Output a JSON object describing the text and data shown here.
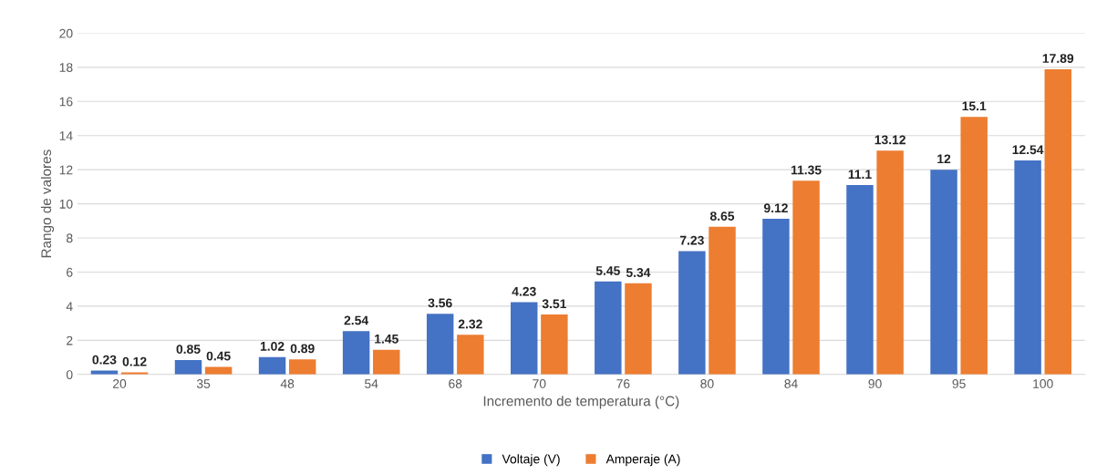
{
  "chart_data": {
    "type": "bar",
    "xlabel": "Incremento de temperatura (°C)",
    "ylabel": "Rango de valores",
    "categories": [
      "20",
      "35",
      "48",
      "54",
      "68",
      "70",
      "76",
      "80",
      "84",
      "90",
      "95",
      "100"
    ],
    "series": [
      {
        "name": "Voltaje (V)",
        "color": "#4472c4",
        "values": [
          0.23,
          0.85,
          1.02,
          2.54,
          3.56,
          4.23,
          5.45,
          7.23,
          9.12,
          11.1,
          12,
          12.54
        ]
      },
      {
        "name": "Amperaje (A)",
        "color": "#ed7d31",
        "values": [
          0.12,
          0.45,
          0.89,
          1.45,
          2.32,
          3.51,
          5.34,
          8.65,
          11.35,
          13.12,
          15.1,
          17.89
        ]
      }
    ],
    "ylim": [
      0,
      20
    ],
    "yticks": [
      0,
      2,
      4,
      6,
      8,
      10,
      12,
      14,
      16,
      18,
      20
    ],
    "grid": "y",
    "legend": "bottom",
    "data_labels": true
  }
}
